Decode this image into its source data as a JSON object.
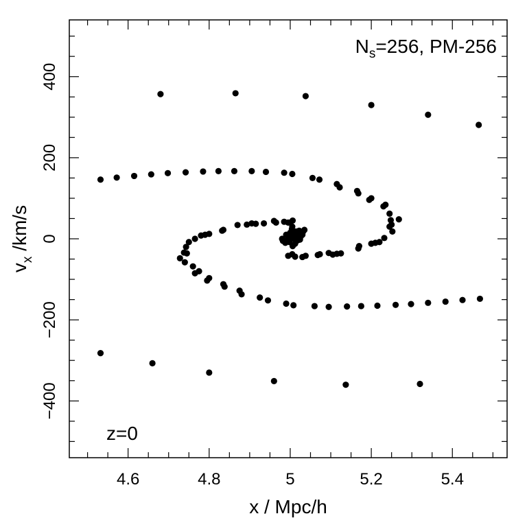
{
  "chart_data": {
    "type": "scatter",
    "title": "",
    "xlabel": "x / Mpc/h",
    "ylabel": "v",
    "ylabel_sub": "x",
    "ylabel_tail": " /km/s",
    "xlim": [
      4.455,
      5.535
    ],
    "ylim": [
      -540,
      540
    ],
    "grid": false,
    "x_ticks": [
      4.6,
      4.8,
      5.0,
      5.2,
      5.4
    ],
    "x_tick_labels": [
      "4.6",
      "4.8",
      "5",
      "5.2",
      "5.4"
    ],
    "y_ticks": [
      -400,
      -200,
      0,
      200,
      400
    ],
    "y_tick_labels": [
      "−400",
      "−200",
      "0",
      "200",
      "400"
    ],
    "annotations": {
      "top_right": {
        "main": "N",
        "sub": "s",
        "rest": "=256, PM-256"
      },
      "bottom_left": "z=0"
    },
    "series": [
      {
        "marker_color": "#000000",
        "points": [
          [
            4.68,
            357
          ],
          [
            4.865,
            359
          ],
          [
            5.038,
            352
          ],
          [
            5.2,
            330
          ],
          [
            5.34,
            306
          ],
          [
            5.465,
            281
          ],
          [
            4.532,
            146
          ],
          [
            4.572,
            151
          ],
          [
            4.615,
            155
          ],
          [
            4.657,
            159
          ],
          [
            4.698,
            162
          ],
          [
            4.742,
            164
          ],
          [
            4.785,
            166
          ],
          [
            4.823,
            167
          ],
          [
            4.862,
            167
          ],
          [
            4.905,
            167
          ],
          [
            4.94,
            165
          ],
          [
            4.985,
            163
          ],
          [
            5.005,
            160
          ],
          [
            5.055,
            150
          ],
          [
            5.072,
            146
          ],
          [
            5.115,
            135
          ],
          [
            5.122,
            127
          ],
          [
            5.165,
            118
          ],
          [
            5.168,
            112
          ],
          [
            5.2,
            100
          ],
          [
            5.195,
            96
          ],
          [
            5.23,
            80
          ],
          [
            5.235,
            84
          ],
          [
            5.245,
            62
          ],
          [
            5.248,
            46
          ],
          [
            5.268,
            48
          ],
          [
            5.25,
            35
          ],
          [
            5.245,
            30
          ],
          [
            5.252,
            18
          ],
          [
            5.232,
            2
          ],
          [
            5.22,
            -8
          ],
          [
            5.21,
            -10
          ],
          [
            5.2,
            -12
          ],
          [
            5.17,
            -18
          ],
          [
            5.168,
            -24
          ],
          [
            5.125,
            -36
          ],
          [
            5.115,
            -37
          ],
          [
            5.105,
            -39
          ],
          [
            5.095,
            -35
          ],
          [
            5.073,
            -38
          ],
          [
            5.068,
            -40
          ],
          [
            5.038,
            -42
          ],
          [
            5.03,
            -45
          ],
          [
            5.012,
            -44
          ],
          [
            5.005,
            -38
          ],
          [
            4.995,
            -42
          ],
          [
            4.98,
            0
          ],
          [
            4.982,
            -5
          ],
          [
            4.988,
            -10
          ],
          [
            4.99,
            10
          ],
          [
            4.993,
            -3
          ],
          [
            4.996,
            5
          ],
          [
            4.998,
            -8
          ],
          [
            5.0,
            15
          ],
          [
            5.002,
            0
          ],
          [
            5.004,
            24
          ],
          [
            5.006,
            -18
          ],
          [
            5.008,
            8
          ],
          [
            5.01,
            0
          ],
          [
            5.012,
            -12
          ],
          [
            5.014,
            18
          ],
          [
            5.016,
            5
          ],
          [
            5.018,
            -4
          ],
          [
            5.02,
            12
          ],
          [
            5.022,
            20
          ],
          [
            5.024,
            -2
          ],
          [
            5.026,
            6
          ],
          [
            5.028,
            14
          ],
          [
            5.03,
            10
          ],
          [
            5.032,
            18
          ],
          [
            5.035,
            22
          ],
          [
            5.0,
            40
          ],
          [
            5.006,
            45
          ],
          [
            5.005,
            30
          ],
          [
            4.995,
            40
          ],
          [
            4.985,
            42
          ],
          [
            4.96,
            44
          ],
          [
            4.965,
            40
          ],
          [
            4.935,
            38
          ],
          [
            4.915,
            37
          ],
          [
            4.905,
            38
          ],
          [
            4.893,
            35
          ],
          [
            4.87,
            34
          ],
          [
            4.835,
            22
          ],
          [
            4.832,
            20
          ],
          [
            4.8,
            12
          ],
          [
            4.79,
            10
          ],
          [
            4.78,
            8
          ],
          [
            4.765,
            0
          ],
          [
            4.75,
            -8
          ],
          [
            4.743,
            -20
          ],
          [
            4.738,
            -34
          ],
          [
            4.745,
            -36
          ],
          [
            4.728,
            -48
          ],
          [
            4.74,
            -58
          ],
          [
            4.76,
            -68
          ],
          [
            4.765,
            -85
          ],
          [
            4.775,
            -80
          ],
          [
            4.8,
            -97
          ],
          [
            4.795,
            -103
          ],
          [
            4.835,
            -112
          ],
          [
            4.838,
            -118
          ],
          [
            4.875,
            -128
          ],
          [
            4.88,
            -137
          ],
          [
            4.925,
            -145
          ],
          [
            4.945,
            -152
          ],
          [
            4.99,
            -160
          ],
          [
            5.008,
            -164
          ],
          [
            5.06,
            -166
          ],
          [
            5.095,
            -168
          ],
          [
            5.14,
            -167
          ],
          [
            5.175,
            -166
          ],
          [
            5.215,
            -165
          ],
          [
            5.26,
            -163
          ],
          [
            5.298,
            -161
          ],
          [
            5.34,
            -158
          ],
          [
            5.383,
            -155
          ],
          [
            5.425,
            -151
          ],
          [
            5.468,
            -148
          ],
          [
            4.532,
            -282
          ],
          [
            4.66,
            -307
          ],
          [
            4.8,
            -330
          ],
          [
            4.96,
            -351
          ],
          [
            5.137,
            -360
          ],
          [
            5.32,
            -358
          ]
        ]
      }
    ]
  }
}
